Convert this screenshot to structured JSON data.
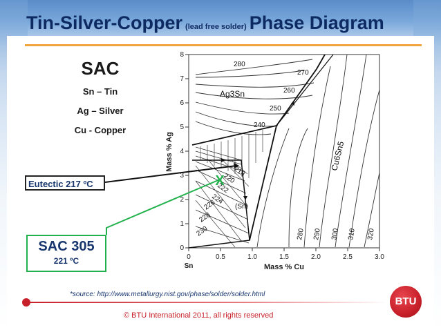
{
  "title": {
    "part1": "Tin-Silver-Copper",
    "part2": "(lead free solder)",
    "part3": "Phase Diagram"
  },
  "legend_block": {
    "title": "SAC",
    "lines": [
      "Sn – Tin",
      "Ag – Silver",
      "Cu - Copper"
    ]
  },
  "callouts": {
    "eutectic": "Eutectic 217 ºC",
    "sac305_title": "SAC 305",
    "sac305_temp": "221 ºC"
  },
  "diagram": {
    "y_axis_label": "Mass % Ag",
    "x_axis_label": "Mass % Cu",
    "x_ticks": [
      "0",
      "0.5",
      "1.0",
      "1.5",
      "2.0",
      "2.5",
      "3.0"
    ],
    "x_origin_label": "Sn",
    "y_ticks": [
      "0",
      "1",
      "2",
      "3",
      "4",
      "5",
      "6",
      "7",
      "8"
    ],
    "phases": {
      "ag3sn": "Ag3Sn",
      "cu6sn5": "Cu6Sn5",
      "sn": "(Sn)"
    },
    "isotherms": [
      "280",
      "270",
      "260",
      "250",
      "240",
      "218",
      "220",
      "222",
      "224",
      "226",
      "228",
      "230",
      "280",
      "290",
      "300",
      "310",
      "320"
    ],
    "marker": "X"
  },
  "source": "*source: http://www.metallurgy.nist.gov/phase/solder/solder.html",
  "copyright": "© BTU International 2011, all rights reserved",
  "logo_text": "BTU",
  "colors": {
    "title": "#0e2a63",
    "accent_orange": "#f0a43c",
    "green": "#22b14c",
    "red": "#c8202a"
  }
}
